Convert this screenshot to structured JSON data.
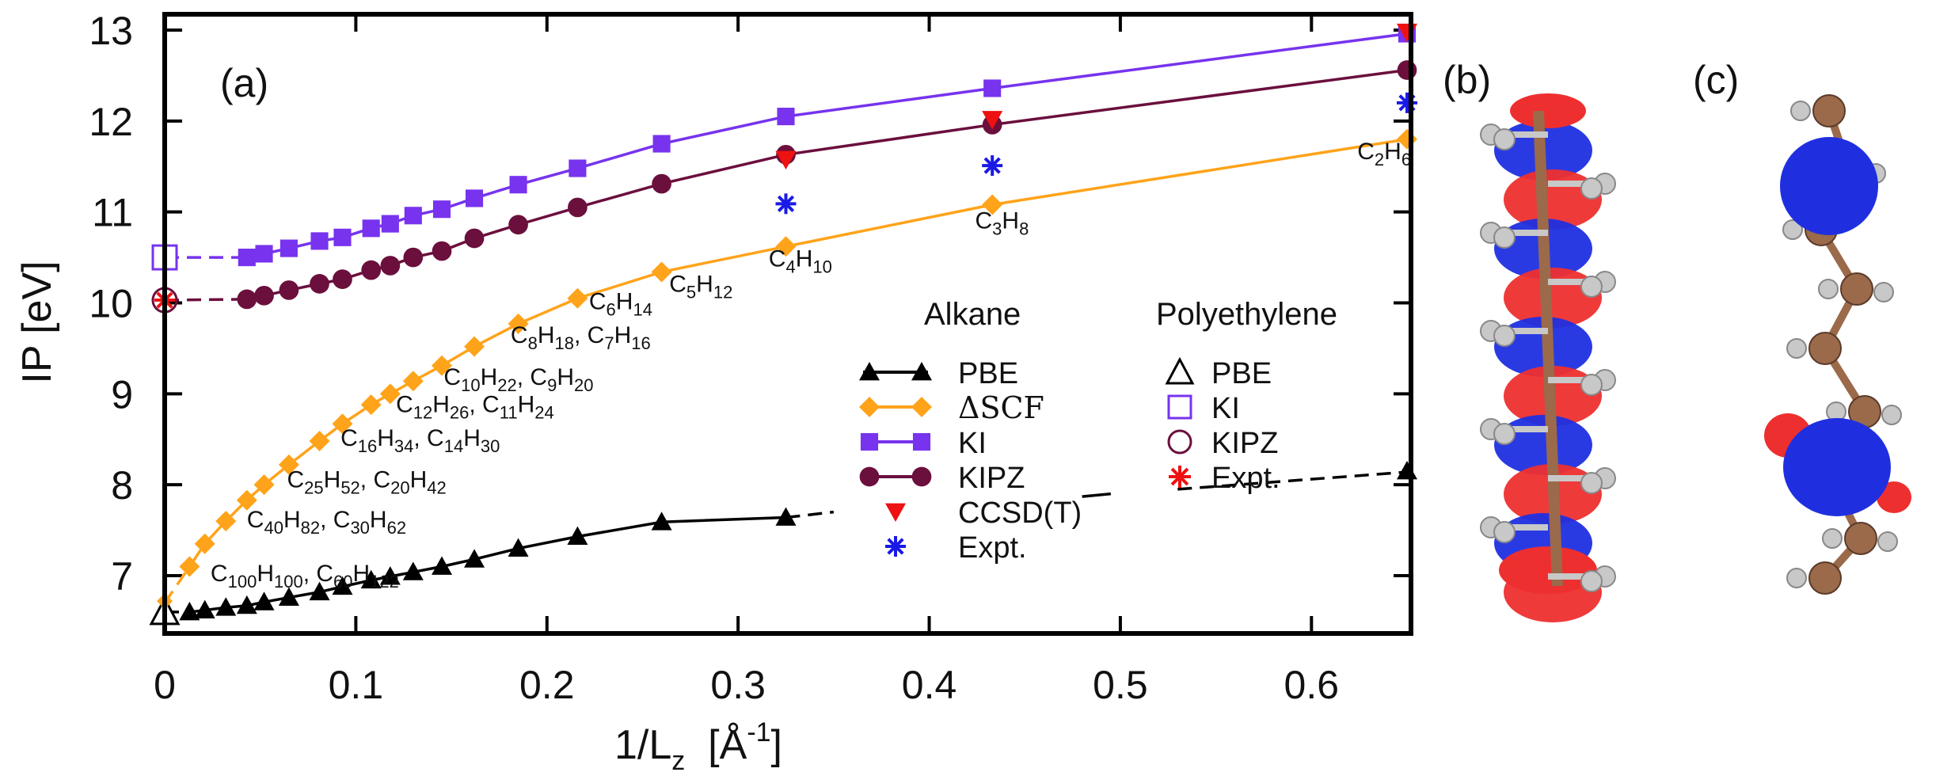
{
  "chart_data": {
    "type": "line",
    "panel_label": "(a)",
    "xlabel": {
      "main": "1/L",
      "sub": "z",
      "unit_open": "  [Å",
      "unit_sup": "-1",
      "unit_close": "]"
    },
    "ylabel": "IP  [eV]",
    "xlim": [
      0,
      0.65
    ],
    "ylim": [
      6.45,
      13.2
    ],
    "x_ticks": [
      0,
      0.1,
      0.2,
      0.3,
      0.4,
      0.5,
      0.6
    ],
    "x_tick_labels": [
      "0",
      "0.1",
      "0.2",
      "0.3",
      "0.4",
      "0.5",
      "0.6"
    ],
    "y_ticks": [
      7,
      8,
      9,
      10,
      11,
      12,
      13
    ],
    "y_tick_labels": [
      "7",
      "8",
      "9",
      "10",
      "11",
      "12",
      "13"
    ],
    "series": [
      {
        "name": "PBE",
        "group": "Alkane",
        "color": "#000000",
        "marker": "triangle",
        "x": [
          0.013,
          0.021,
          0.032,
          0.043,
          0.052,
          0.065,
          0.081,
          0.093,
          0.108,
          0.118,
          0.13,
          0.145,
          0.162,
          0.185,
          0.216,
          0.26,
          0.325
        ],
        "y": [
          6.6,
          6.62,
          6.65,
          6.67,
          6.71,
          6.76,
          6.82,
          6.88,
          6.95,
          6.99,
          7.04,
          7.1,
          7.18,
          7.3,
          7.43,
          7.59,
          7.64
        ]
      },
      {
        "name": "ΔSCF",
        "group": "Alkane",
        "color": "#ffa31a",
        "marker": "diamond",
        "x": [
          0.013,
          0.021,
          0.032,
          0.043,
          0.052,
          0.065,
          0.081,
          0.093,
          0.108,
          0.118,
          0.13,
          0.145,
          0.162,
          0.185,
          0.216,
          0.26,
          0.325,
          0.433,
          0.65
        ],
        "y": [
          7.1,
          7.35,
          7.6,
          7.83,
          8.0,
          8.22,
          8.48,
          8.67,
          8.88,
          9.0,
          9.14,
          9.31,
          9.52,
          9.77,
          10.05,
          10.34,
          10.62,
          11.08,
          11.8
        ]
      },
      {
        "name": "KI",
        "group": "Alkane",
        "color": "#7733ee",
        "marker": "square",
        "x": [
          0.043,
          0.052,
          0.065,
          0.081,
          0.093,
          0.108,
          0.118,
          0.13,
          0.145,
          0.162,
          0.185,
          0.216,
          0.26,
          0.325,
          0.433,
          0.65
        ],
        "y": [
          10.5,
          10.54,
          10.6,
          10.68,
          10.72,
          10.82,
          10.87,
          10.96,
          11.03,
          11.15,
          11.3,
          11.48,
          11.75,
          12.05,
          12.36,
          12.96
        ]
      },
      {
        "name": "KIPZ",
        "group": "Alkane",
        "color": "#6b0f3d",
        "marker": "circle",
        "x": [
          0.043,
          0.052,
          0.065,
          0.081,
          0.093,
          0.108,
          0.118,
          0.13,
          0.145,
          0.162,
          0.185,
          0.216,
          0.26,
          0.325,
          0.433,
          0.65
        ],
        "y": [
          10.04,
          10.08,
          10.14,
          10.21,
          10.26,
          10.36,
          10.41,
          10.5,
          10.57,
          10.71,
          10.86,
          11.05,
          11.31,
          11.63,
          11.96,
          12.56
        ]
      },
      {
        "name": "CCSD(T)",
        "group": "Alkane",
        "color": "#ee1111",
        "marker": "triangle-down",
        "x": [
          0.325,
          0.433,
          0.65
        ],
        "y": [
          11.58,
          12.02,
          12.98
        ]
      },
      {
        "name": "Expt.",
        "group": "Alkane",
        "color": "#1a1ae6",
        "marker": "asterisk",
        "x": [
          0.325,
          0.433,
          0.65
        ],
        "y": [
          11.09,
          11.51,
          12.2
        ]
      },
      {
        "name": "PBE",
        "group": "Polyethylene",
        "color": "#000000",
        "marker": "triangle-open",
        "x": [
          0
        ],
        "y": [
          6.6
        ]
      },
      {
        "name": "KI",
        "group": "Polyethylene",
        "color": "#7733ee",
        "marker": "square-open",
        "x": [
          0
        ],
        "y": [
          10.5
        ]
      },
      {
        "name": "KIPZ",
        "group": "Polyethylene",
        "color": "#6b0f3d",
        "marker": "circle-open",
        "x": [
          0
        ],
        "y": [
          10.03
        ]
      },
      {
        "name": "Expt.",
        "group": "Polyethylene",
        "color": "#ee1111",
        "marker": "asterisk",
        "x": [
          0
        ],
        "y": [
          10.03
        ]
      }
    ],
    "extrapolation_lines": [
      {
        "color": "#7733ee",
        "x": [
          0,
          0.043
        ],
        "y": [
          10.5,
          10.5
        ]
      },
      {
        "color": "#6b0f3d",
        "x": [
          0,
          0.043
        ],
        "y": [
          10.03,
          10.04
        ]
      },
      {
        "color": "#ffa31a",
        "x": [
          0,
          0.013
        ],
        "y": [
          6.7,
          7.1
        ]
      },
      {
        "color": "#000000",
        "x": [
          0,
          0.013
        ],
        "y": [
          6.6,
          6.6
        ]
      },
      {
        "color": "#000000",
        "x": [
          0.325,
          0.35
        ],
        "y": [
          7.64,
          7.7
        ]
      },
      {
        "color": "#000000",
        "x": [
          0.53,
          0.65
        ],
        "y": [
          7.95,
          8.14
        ]
      }
    ],
    "extrapolation_dashed_segment": {
      "color": "#000000",
      "x": [
        0.48,
        0.495
      ],
      "y": [
        7.87,
        7.9
      ]
    },
    "pbe_end_point": {
      "x": 0.65,
      "y": 8.15
    },
    "dscf_start_point": {
      "x": 0,
      "y": 6.72
    },
    "molecule_labels": [
      {
        "parts": [
          [
            "C",
            ""
          ],
          [
            "2",
            "sub"
          ],
          [
            "H",
            ""
          ],
          [
            "6",
            "sub"
          ]
        ],
        "x": 0.624,
        "y": 11.58
      },
      {
        "parts": [
          [
            "C",
            ""
          ],
          [
            "3",
            "sub"
          ],
          [
            "H",
            ""
          ],
          [
            "8",
            "sub"
          ]
        ],
        "x": 0.424,
        "y": 10.82
      },
      {
        "parts": [
          [
            "C",
            ""
          ],
          [
            "4",
            "sub"
          ],
          [
            "H",
            ""
          ],
          [
            "10",
            "sub"
          ]
        ],
        "x": 0.316,
        "y": 10.4
      },
      {
        "parts": [
          [
            "C",
            ""
          ],
          [
            "5",
            "sub"
          ],
          [
            "H",
            ""
          ],
          [
            "12",
            "sub"
          ]
        ],
        "x": 0.264,
        "y": 10.12
      },
      {
        "parts": [
          [
            "C",
            ""
          ],
          [
            "6",
            "sub"
          ],
          [
            "H",
            ""
          ],
          [
            "14",
            "sub"
          ]
        ],
        "x": 0.222,
        "y": 9.93
      },
      {
        "parts": [
          [
            "C",
            ""
          ],
          [
            "8",
            "sub"
          ],
          [
            "H",
            ""
          ],
          [
            "18",
            "sub"
          ],
          [
            ", C",
            ""
          ],
          [
            "7",
            "sub"
          ],
          [
            "H",
            ""
          ],
          [
            "16",
            "sub"
          ]
        ],
        "x": 0.181,
        "y": 9.56
      },
      {
        "parts": [
          [
            "C",
            ""
          ],
          [
            "10",
            "sub"
          ],
          [
            "H",
            ""
          ],
          [
            "22",
            "sub"
          ],
          [
            ", C",
            ""
          ],
          [
            "9",
            "sub"
          ],
          [
            "H",
            ""
          ],
          [
            "20",
            "sub"
          ]
        ],
        "x": 0.146,
        "y": 9.1
      },
      {
        "parts": [
          [
            "C",
            ""
          ],
          [
            "12",
            "sub"
          ],
          [
            "H",
            ""
          ],
          [
            "26",
            "sub"
          ],
          [
            ", C",
            ""
          ],
          [
            "11",
            "sub"
          ],
          [
            "H",
            ""
          ],
          [
            "24",
            "sub"
          ]
        ],
        "x": 0.121,
        "y": 8.8
      },
      {
        "parts": [
          [
            "C",
            ""
          ],
          [
            "16",
            "sub"
          ],
          [
            "H",
            ""
          ],
          [
            "34",
            "sub"
          ],
          [
            ", C",
            ""
          ],
          [
            "14",
            "sub"
          ],
          [
            "H",
            ""
          ],
          [
            "30",
            "sub"
          ]
        ],
        "x": 0.092,
        "y": 8.43
      },
      {
        "parts": [
          [
            "C",
            ""
          ],
          [
            "25",
            "sub"
          ],
          [
            "H",
            ""
          ],
          [
            "52",
            "sub"
          ],
          [
            ", C",
            ""
          ],
          [
            "20",
            "sub"
          ],
          [
            "H",
            ""
          ],
          [
            "42",
            "sub"
          ]
        ],
        "x": 0.064,
        "y": 7.97
      },
      {
        "parts": [
          [
            "C",
            ""
          ],
          [
            "40",
            "sub"
          ],
          [
            "H",
            ""
          ],
          [
            "82",
            "sub"
          ],
          [
            ", C",
            ""
          ],
          [
            "30",
            "sub"
          ],
          [
            "H",
            ""
          ],
          [
            "62",
            "sub"
          ]
        ],
        "x": 0.043,
        "y": 7.53
      },
      {
        "parts": [
          [
            "C",
            ""
          ],
          [
            "100",
            "sub"
          ],
          [
            "H",
            ""
          ],
          [
            "100",
            "sub"
          ],
          [
            ", C",
            ""
          ],
          [
            "60",
            "sub"
          ],
          [
            "H",
            ""
          ],
          [
            "122",
            "sub"
          ]
        ],
        "x": 0.024,
        "y": 6.94
      }
    ],
    "legend": {
      "placement": "lower-right",
      "alkane_title": "Alkane",
      "polyethylene_title": "Polyethylene",
      "alkane_entries": [
        "PBE",
        "ΔSCF",
        "KI",
        "KIPZ",
        "CCSD(T)",
        "Expt."
      ],
      "polyethylene_entries": [
        "PBE",
        "KI",
        "KIPZ",
        "Expt."
      ]
    }
  },
  "panels": {
    "b_label": "(b)",
    "c_label": "(c)",
    "colors": {
      "red_lobe": "#ee2f2f",
      "blue_lobe": "#1f2fe0",
      "carbon": "#9a6a4a",
      "hydrogen": "#c8c8c8"
    }
  }
}
